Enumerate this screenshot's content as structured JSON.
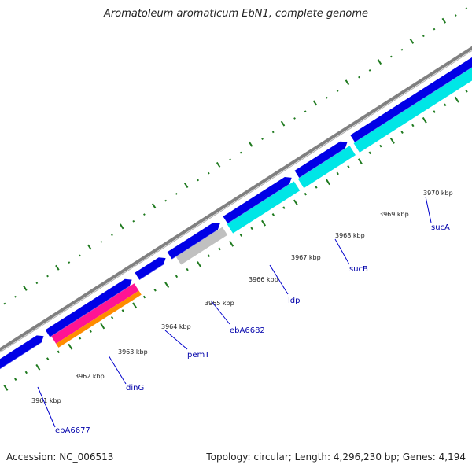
{
  "title": "Aromatoleum aromaticum EbN1, complete genome",
  "footer": {
    "accession": "Accession: NC_006513",
    "summary": "Topology: circular; Length: 4,296,230 bp; Genes: 4,194"
  },
  "colors": {
    "backbone": "#808080",
    "cds_forward": "#0000e6",
    "cds_reverse": "#00e6e6",
    "cds_other": "#c0c0c0",
    "magenta_feature": "#ff1493",
    "orange_feature": "#ff8c00",
    "ticks": "#1f7a1f",
    "label_line": "#0000cc",
    "label_text": "#0000aa"
  },
  "scale_ticks": [
    {
      "label": "3961 kbp"
    },
    {
      "label": "3962 kbp"
    },
    {
      "label": "3963 kbp"
    },
    {
      "label": "3964 kbp"
    },
    {
      "label": "3965 kbp"
    },
    {
      "label": "3966 kbp"
    },
    {
      "label": "3967 kbp"
    },
    {
      "label": "3968 kbp"
    },
    {
      "label": "3969 kbp"
    },
    {
      "label": "3970 kbp"
    }
  ],
  "gene_labels": [
    {
      "label": "ebA6677"
    },
    {
      "label": "dinG"
    },
    {
      "label": "pemT"
    },
    {
      "label": "ebA6682"
    },
    {
      "label": "ldp"
    },
    {
      "label": "sucB"
    },
    {
      "label": "sucA"
    }
  ]
}
